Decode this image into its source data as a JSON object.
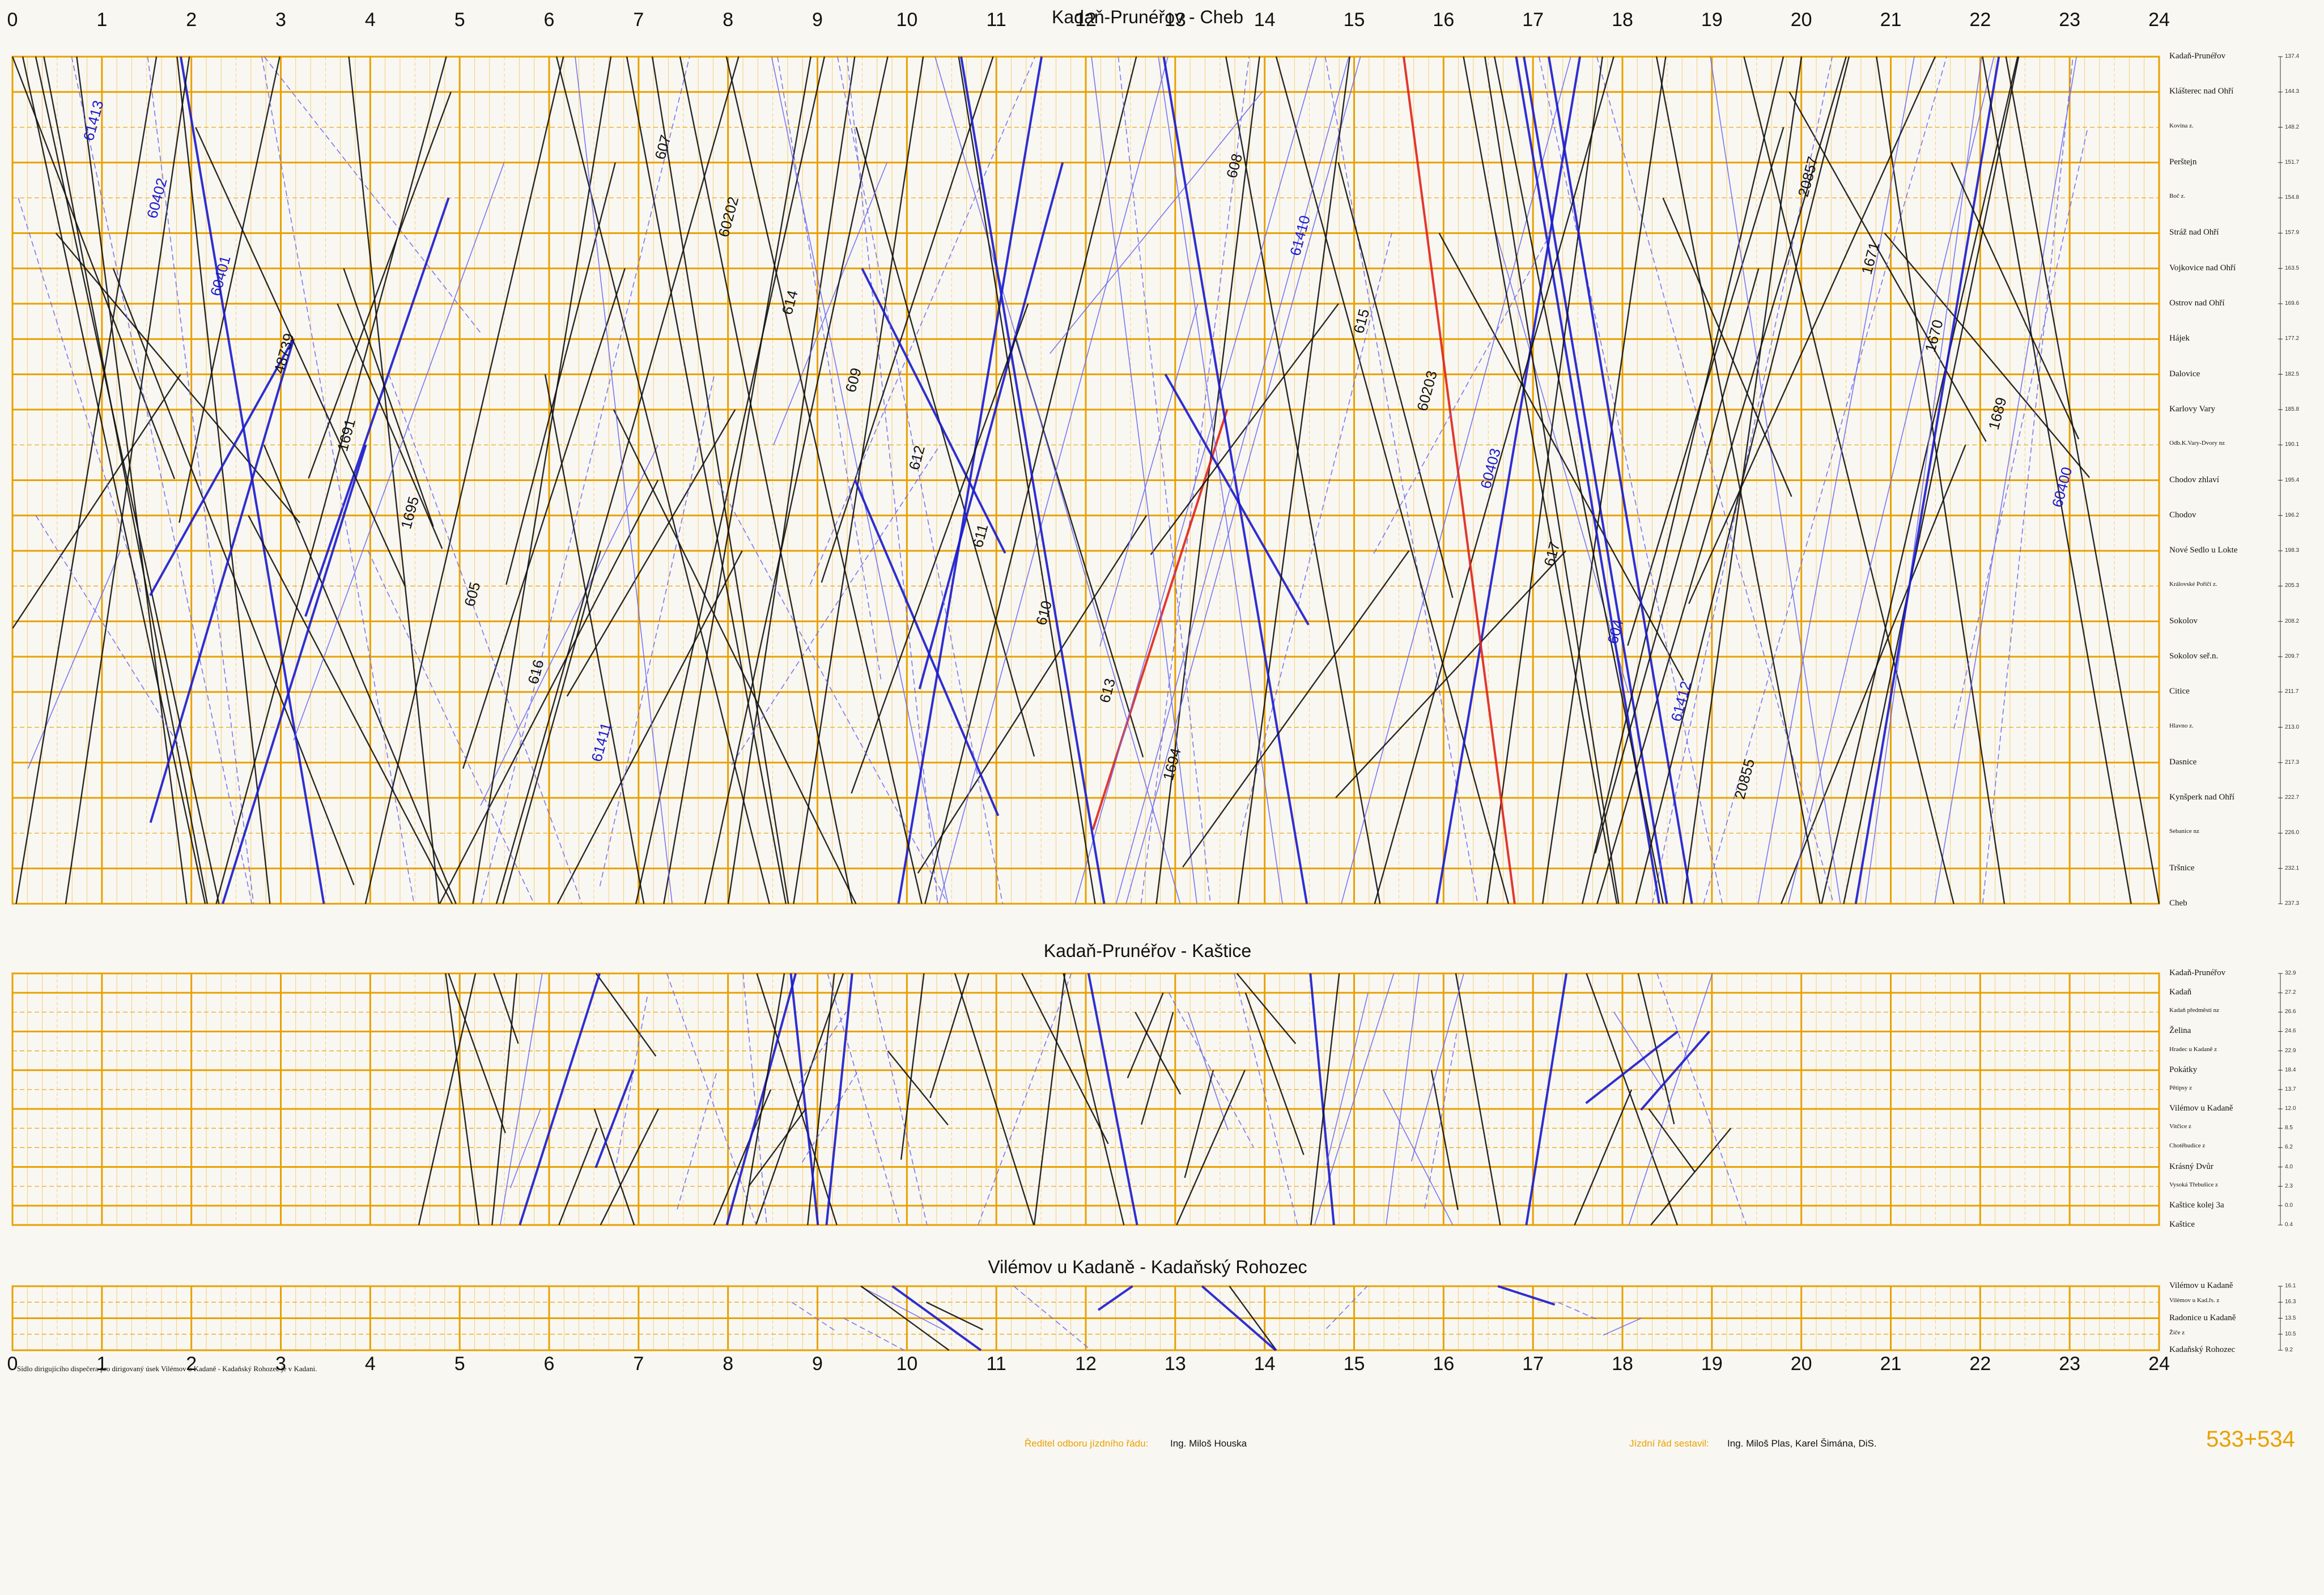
{
  "colors": {
    "grid": "#e8a100",
    "gridFine": "#f2c45a",
    "blue": "#1a1acd",
    "lightblue": "#6b6bf0",
    "red": "#e0241b",
    "black": "#111111"
  },
  "hours": [
    "0",
    "1",
    "2",
    "3",
    "4",
    "5",
    "6",
    "7",
    "8",
    "9",
    "10",
    "11",
    "12",
    "13",
    "14",
    "15",
    "16",
    "17",
    "18",
    "19",
    "20",
    "21",
    "22",
    "23",
    "24"
  ],
  "panels": [
    {
      "title": "Kadaň-Prunéřov - Cheb",
      "stations": [
        {
          "name": "Kadaň-Prunéřov",
          "km": "137.4"
        },
        {
          "name": "Klášterec nad Ohří",
          "km": "144.3"
        },
        {
          "name": "Kovina z.",
          "km": "148.2"
        },
        {
          "name": "Perštejn",
          "km": "151.7"
        },
        {
          "name": "Boč z.",
          "km": "154.8"
        },
        {
          "name": "Stráž nad Ohří",
          "km": "157.9"
        },
        {
          "name": "Vojkovice nad Ohří",
          "km": "163.5"
        },
        {
          "name": "Ostrov nad Ohří",
          "km": "169.6"
        },
        {
          "name": "Hájek",
          "km": "177.2"
        },
        {
          "name": "Dalovice",
          "km": "182.5"
        },
        {
          "name": "Karlovy Vary",
          "km": "185.8"
        },
        {
          "name": "Odb.K.Vary-Dvory nz",
          "km": "190.1"
        },
        {
          "name": "Chodov zhlaví",
          "km": "195.4"
        },
        {
          "name": "Chodov",
          "km": "196.2"
        },
        {
          "name": "Nové Sedlo u Lokte",
          "km": "198.3"
        },
        {
          "name": "Královské Poříčí z.",
          "km": "205.3"
        },
        {
          "name": "Sokolov",
          "km": "208.2"
        },
        {
          "name": "Sokolov seř.n.",
          "km": "209.7"
        },
        {
          "name": "Citice",
          "km": "211.7"
        },
        {
          "name": "Hlavno z.",
          "km": "213.0"
        },
        {
          "name": "Dasnice",
          "km": "217.3"
        },
        {
          "name": "Kynšperk nad Ohří",
          "km": "222.7"
        },
        {
          "name": "Sebanice nz",
          "km": "226.0"
        },
        {
          "name": "Tršnice",
          "km": "232.1"
        },
        {
          "name": "Cheb",
          "km": "237.3"
        }
      ]
    },
    {
      "title": "Kadaň-Prunéřov - Kaštice",
      "stations": [
        {
          "name": "Kadaň-Prunéřov",
          "km": "32.9"
        },
        {
          "name": "Kadaň",
          "km": "27.2"
        },
        {
          "name": "Kadaň předměstí nz",
          "km": "26.6"
        },
        {
          "name": "Želina",
          "km": "24.6"
        },
        {
          "name": "Hradec u Kadaně z",
          "km": "22.9"
        },
        {
          "name": "Pokátky",
          "km": "18.4"
        },
        {
          "name": "Pětipsy z",
          "km": "13.7"
        },
        {
          "name": "Vilémov u Kadaně",
          "km": "12.0"
        },
        {
          "name": "Vitčice z",
          "km": "8.5"
        },
        {
          "name": "Chotěbudice z",
          "km": "6.2"
        },
        {
          "name": "Krásný Dvůr",
          "km": "4.0"
        },
        {
          "name": "Vysoká Třebušice z",
          "km": "2.3"
        },
        {
          "name": "Kaštice kolej 3a",
          "km": "0.0"
        },
        {
          "name": "Kaštice",
          "km": "0.4"
        }
      ]
    },
    {
      "title": "Vilémov u Kadaně - Kadaňský Rohozec",
      "stations": [
        {
          "name": "Vilémov u Kadaně",
          "km": "16.1"
        },
        {
          "name": "Vilémov u Kad.řs. z",
          "km": "16.3"
        },
        {
          "name": "Radonice u Kadaně",
          "km": "13.5"
        },
        {
          "name": "Žiče z",
          "km": "10.5"
        },
        {
          "name": "Kadaňský Rohozec",
          "km": "9.2"
        }
      ]
    }
  ],
  "train_labels": [
    "61413",
    "60402",
    "60401",
    "48739",
    "1691",
    "1695",
    "605",
    "616",
    "61411",
    "607",
    "60202",
    "614",
    "609",
    "612",
    "611",
    "610",
    "613",
    "1694",
    "608",
    "61410",
    "615",
    "60203",
    "60403",
    "617",
    "604",
    "61412",
    "20855",
    "20857",
    "1671",
    "1670",
    "1689",
    "60400"
  ],
  "footnote": "Sídlo dirigujícího dispečera pro dirigovaný úsek Vilémov u Kadaně - Kadaňský Rohozec je v Kadani.",
  "footer": {
    "director_label": "Ředitel odboru jízdního řádu:",
    "director_name": "Ing. Miloš Houska",
    "compiled_label": "Jízdní řád sestavil:",
    "compiled_names": "Ing. Miloš Plas, Karel Šimána, DiS.",
    "sheet": "533+534"
  }
}
